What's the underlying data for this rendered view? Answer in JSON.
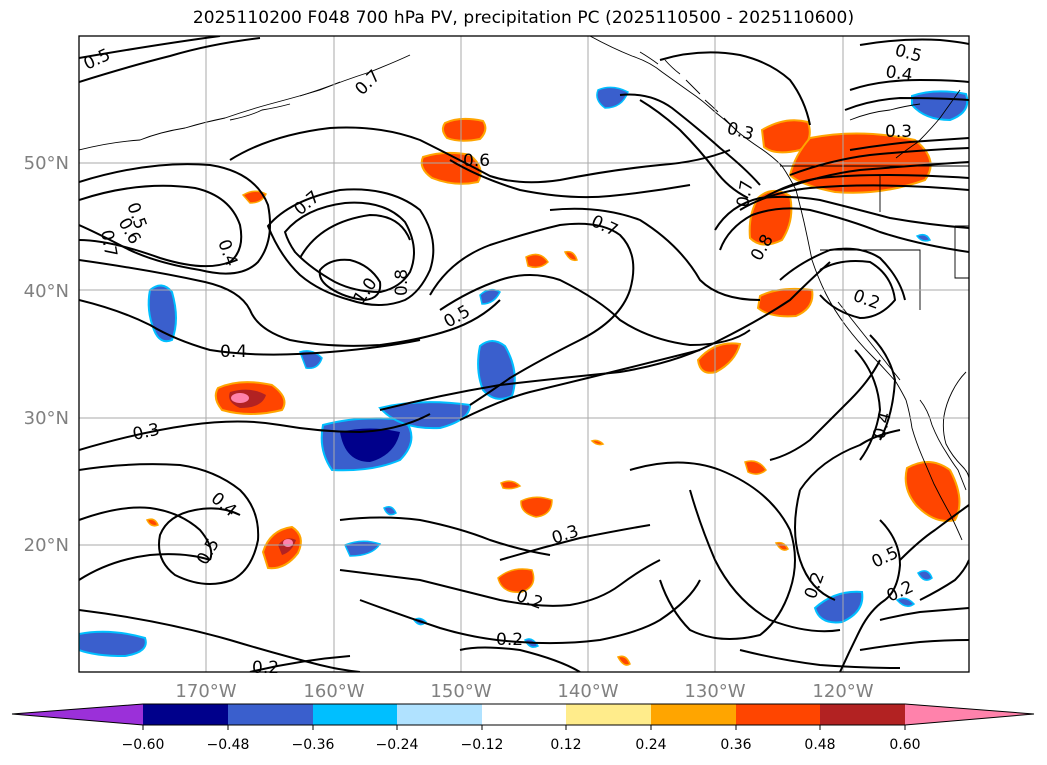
{
  "title": "2025110200 F048 700 hPa PV, precipitation PC (2025110500 - 2025110600)",
  "lat_labels": [
    "50°N",
    "40°N",
    "30°N",
    "20°N"
  ],
  "lon_labels": [
    "170°W",
    "160°W",
    "150°W",
    "140°W",
    "130°W",
    "120°W"
  ],
  "contour_labels": [
    "0.5",
    "0.7",
    "0.6",
    "0.5",
    "0.4",
    "0.7",
    "1.0",
    "0.8",
    "0.7",
    "0.6",
    "0.5",
    "0.4",
    "0.3",
    "0.4",
    "0.3",
    "0.3",
    "0.7",
    "0.7",
    "0.8",
    "0.2",
    "0.5",
    "0.4",
    "0.5",
    "0.3",
    "0.2",
    "0.2",
    "0.2",
    "0.5",
    "0.2",
    "0.4",
    "0.2"
  ],
  "colorbar": {
    "ticks": [
      "−0.60",
      "−0.48",
      "−0.36",
      "−0.24",
      "−0.12",
      "0.12",
      "0.24",
      "0.36",
      "0.48",
      "0.60"
    ],
    "colors": [
      "#9b30d9",
      "#00008b",
      "#3a5fcd",
      "#00bfff",
      "#b0e2ff",
      "#ffffff",
      "#ffec8b",
      "#ffa500",
      "#ff4500",
      "#b22222",
      "#ff82ab"
    ]
  }
}
